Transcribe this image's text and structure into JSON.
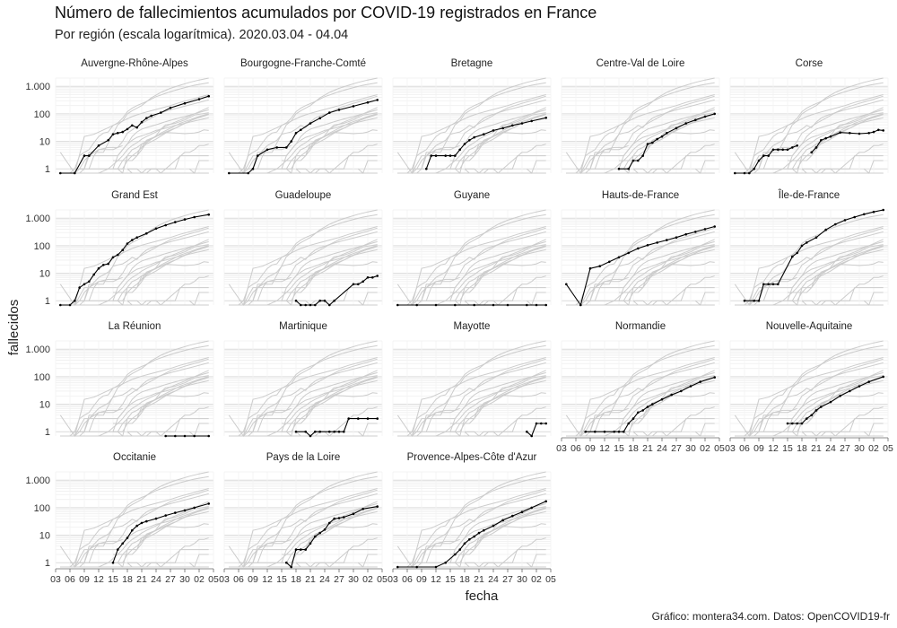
{
  "title": "Número de fallecimientos acumulados por COVID-19 registrados en France",
  "subtitle": "Por región (escala logarítmica). 2020.03.04 - 04.04",
  "caption": "Gráfico: montera34.com. Datos: OpenCOVID19-fr",
  "chart_data": {
    "type": "line",
    "scale": "log",
    "xlabel": "fecha",
    "ylabel": "fallecidos",
    "ylim": [
      0.7,
      2000
    ],
    "yticks": [
      1,
      10,
      100,
      1000
    ],
    "ytick_labels": [
      "1",
      "10",
      "100",
      "1.000"
    ],
    "x_start": "2020-03-03",
    "x_end": "2020-04-05",
    "xtick_labels": [
      "03",
      "06",
      "09",
      "12",
      "15",
      "18",
      "21",
      "24",
      "27",
      "30",
      "02",
      "05"
    ],
    "grid": true,
    "background_lines": "all regions shown in grey behind each panel",
    "highlight_color": "#000000",
    "background_color": "#cccccc",
    "panels": [
      {
        "name": "Auvergne-Rhône-Alpes",
        "dates": [
          "03-04",
          "03-07",
          "03-09",
          "03-10",
          "03-12",
          "03-14",
          "03-15",
          "03-16",
          "03-17",
          "03-18",
          "03-19",
          "03-20",
          "03-21",
          "03-22",
          "03-23",
          "03-25",
          "03-27",
          "03-30",
          "04-02",
          "04-04"
        ],
        "values": [
          0.7,
          0.7,
          3,
          3,
          7,
          11,
          18,
          20,
          22,
          28,
          38,
          32,
          50,
          70,
          85,
          110,
          165,
          240,
          340,
          440
        ]
      },
      {
        "name": "Bourgogne-Franche-Comté",
        "dates": [
          "03-04",
          "03-08",
          "03-09",
          "03-10",
          "03-12",
          "03-14",
          "03-16",
          "03-17",
          "03-18",
          "03-19",
          "03-21",
          "03-23",
          "03-25",
          "03-27",
          "03-30",
          "04-02",
          "04-04"
        ],
        "values": [
          0.7,
          0.7,
          1,
          3,
          5,
          6,
          6,
          10,
          20,
          26,
          45,
          70,
          110,
          140,
          190,
          260,
          320
        ]
      },
      {
        "name": "Bretagne",
        "dates": [
          "03-10",
          "03-11",
          "03-12",
          "03-14",
          "03-15",
          "03-16",
          "03-17",
          "03-18",
          "03-19",
          "03-20",
          "03-22",
          "03-24",
          "03-26",
          "03-28",
          "03-30",
          "04-01",
          "04-04"
        ],
        "values": [
          1,
          3,
          3,
          3,
          3,
          3,
          5,
          8,
          11,
          14,
          18,
          25,
          30,
          38,
          45,
          55,
          72
        ]
      },
      {
        "name": "Centre-Val de Loire",
        "dates": [
          "03-15",
          "03-17",
          "03-18",
          "03-19",
          "03-20",
          "03-21",
          "03-22",
          "03-23",
          "03-24",
          "03-25",
          "03-27",
          "03-29",
          "03-31",
          "04-02",
          "04-04"
        ],
        "values": [
          1,
          1,
          2,
          2,
          3,
          8,
          9,
          12,
          15,
          20,
          30,
          45,
          60,
          80,
          100
        ]
      },
      {
        "name": "Corse",
        "dates": [
          "03-04",
          "03-06",
          "03-07",
          "03-08",
          "03-09",
          "03-10",
          "03-11",
          "03-12",
          "03-13",
          "03-14",
          "03-15",
          "03-16",
          "03-17"
        ],
        "values": [
          0.7,
          0.7,
          0.7,
          1,
          2,
          3,
          3,
          5,
          5,
          5,
          5,
          6,
          7
        ],
        "dates2": [
          "03-20",
          "03-21",
          "03-22",
          "03-23",
          "03-24",
          "03-26",
          "03-28",
          "03-30",
          "04-01",
          "04-02",
          "04-03",
          "04-04"
        ],
        "values2": [
          4,
          6,
          11,
          13,
          15,
          21,
          20,
          19,
          20,
          22,
          26,
          25
        ]
      },
      {
        "name": "Grand Est",
        "dates": [
          "03-04",
          "03-06",
          "03-07",
          "03-08",
          "03-09",
          "03-10",
          "03-11",
          "03-12",
          "03-13",
          "03-14",
          "03-15",
          "03-16",
          "03-17",
          "03-18",
          "03-19",
          "03-20",
          "03-22",
          "03-24",
          "03-26",
          "03-28",
          "03-30",
          "04-01",
          "04-04"
        ],
        "values": [
          0.7,
          0.7,
          1,
          3,
          4,
          5,
          9,
          15,
          20,
          22,
          38,
          47,
          70,
          120,
          160,
          200,
          280,
          420,
          560,
          720,
          900,
          1100,
          1350
        ]
      },
      {
        "name": "Guadeloupe",
        "dates": [
          "03-18",
          "03-19",
          "03-20",
          "03-21",
          "03-22",
          "03-23",
          "03-24",
          "03-25",
          "03-26",
          "03-30",
          "03-31",
          "04-01",
          "04-02",
          "04-03",
          "04-04"
        ],
        "values": [
          1,
          0.7,
          0.7,
          0.7,
          0.7,
          1,
          1,
          0.7,
          1,
          4,
          4,
          5,
          7,
          7,
          8
        ]
      },
      {
        "name": "Guyane",
        "dates": [
          "03-04",
          "03-08",
          "03-12",
          "03-16",
          "03-20",
          "03-24",
          "03-27",
          "03-31",
          "04-02",
          "04-04"
        ],
        "values": [
          0.7,
          0.7,
          0.7,
          0.7,
          0.7,
          0.7,
          0.7,
          0.7,
          0.7,
          0.7
        ]
      },
      {
        "name": "Hauts-de-France",
        "dates": [
          "03-04",
          "03-07",
          "03-09",
          "03-11",
          "03-13",
          "03-15",
          "03-17",
          "03-19",
          "03-21",
          "03-23",
          "03-25",
          "03-27",
          "03-29",
          "03-31",
          "04-02",
          "04-04"
        ],
        "values": [
          4,
          0.7,
          15,
          18,
          26,
          38,
          55,
          80,
          105,
          130,
          160,
          200,
          260,
          320,
          400,
          500
        ]
      },
      {
        "name": "Île-de-France",
        "dates": [
          "03-06",
          "03-08",
          "03-09",
          "03-10",
          "03-11",
          "03-12",
          "03-13",
          "03-16",
          "03-17",
          "03-18",
          "03-19",
          "03-21",
          "03-23",
          "03-25",
          "03-27",
          "03-29",
          "03-31",
          "04-02",
          "04-04"
        ],
        "values": [
          1,
          1,
          1,
          4,
          4,
          4,
          4,
          40,
          55,
          100,
          130,
          200,
          380,
          600,
          850,
          1100,
          1400,
          1700,
          2000
        ]
      },
      {
        "name": "La Réunion",
        "dates": [
          "03-26",
          "03-28",
          "03-30",
          "04-01",
          "04-04"
        ],
        "values": [
          0.7,
          0.7,
          0.7,
          0.7,
          0.7
        ]
      },
      {
        "name": "Martinique",
        "dates": [
          "03-18",
          "03-20",
          "03-21",
          "03-22",
          "03-23",
          "03-25",
          "03-26",
          "03-27",
          "03-28",
          "03-29",
          "03-31",
          "04-02",
          "04-04"
        ],
        "values": [
          1,
          1,
          0.7,
          1,
          1,
          1,
          1,
          1,
          1,
          3,
          3,
          3,
          3
        ]
      },
      {
        "name": "Mayotte",
        "dates": [
          "03-31",
          "04-01",
          "04-02",
          "04-03",
          "04-04"
        ],
        "values": [
          1,
          0.7,
          2,
          2,
          2
        ]
      },
      {
        "name": "Normandie",
        "dates": [
          "03-08",
          "03-10",
          "03-12",
          "03-14",
          "03-15",
          "03-16",
          "03-17",
          "03-18",
          "03-19",
          "03-20",
          "03-21",
          "03-22",
          "03-24",
          "03-26",
          "03-28",
          "03-30",
          "04-01",
          "04-04"
        ],
        "values": [
          1,
          1,
          1,
          1,
          1,
          1,
          2,
          3,
          5,
          6,
          8,
          10,
          15,
          22,
          30,
          45,
          65,
          95
        ]
      },
      {
        "name": "Nouvelle-Aquitaine",
        "dates": [
          "03-15",
          "03-16",
          "03-17",
          "03-18",
          "03-19",
          "03-20",
          "03-21",
          "03-22",
          "03-24",
          "03-26",
          "03-28",
          "03-30",
          "04-01",
          "04-04"
        ],
        "values": [
          2,
          2,
          2,
          2,
          3,
          4,
          6,
          8,
          12,
          20,
          30,
          45,
          65,
          100
        ]
      },
      {
        "name": "Occitanie",
        "dates": [
          "03-15",
          "03-16",
          "03-17",
          "03-18",
          "03-19",
          "03-20",
          "03-21",
          "03-22",
          "03-24",
          "03-26",
          "03-28",
          "03-30",
          "04-01",
          "04-04"
        ],
        "values": [
          1,
          3,
          5,
          8,
          15,
          22,
          28,
          32,
          40,
          52,
          65,
          80,
          100,
          140
        ]
      },
      {
        "name": "Pays de la Loire",
        "dates": [
          "03-16",
          "03-17",
          "03-18",
          "03-19",
          "03-20",
          "03-21",
          "03-22",
          "03-23",
          "03-24",
          "03-25",
          "03-26",
          "03-27",
          "03-28",
          "03-30",
          "04-01",
          "04-04"
        ],
        "values": [
          1,
          0.7,
          3,
          3,
          3,
          5,
          9,
          12,
          16,
          28,
          40,
          42,
          45,
          60,
          90,
          110
        ]
      },
      {
        "name": "Provence-Alpes-Côte d'Azur",
        "dates": [
          "03-04",
          "03-08",
          "03-12",
          "03-14",
          "03-16",
          "03-17",
          "03-18",
          "03-19",
          "03-20",
          "03-21",
          "03-22",
          "03-24",
          "03-26",
          "03-28",
          "03-30",
          "04-01",
          "04-04"
        ],
        "values": [
          0.7,
          0.7,
          0.7,
          1,
          2,
          3,
          5,
          7,
          9,
          12,
          15,
          22,
          35,
          50,
          70,
          100,
          170
        ]
      }
    ]
  }
}
